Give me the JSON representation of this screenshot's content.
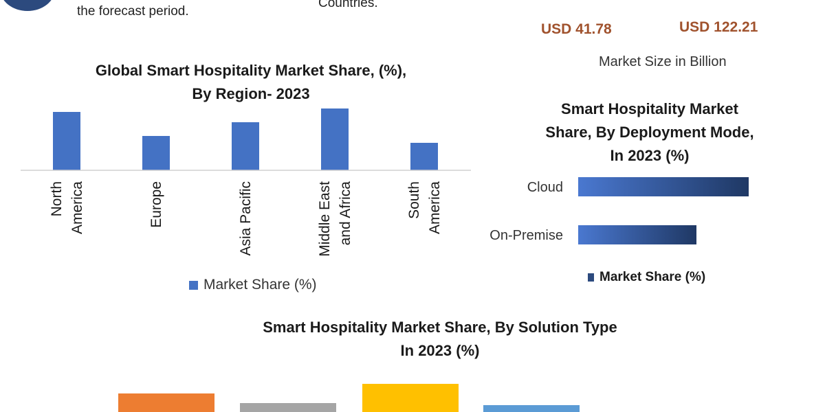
{
  "header": {
    "left_text": "the forecast period.",
    "mid_text": "Countries.",
    "usd_left": "USD 41.78",
    "usd_right": "USD 122.21",
    "size_label": "Market Size in Billion"
  },
  "colors": {
    "logo": "#2c4a7e",
    "usd": "#a0522d",
    "bar_blue": "#4472c4",
    "deploy_start": "#4a78d0",
    "deploy_end": "#1f3864",
    "solution": [
      "#ed7d31",
      "#a5a5a5",
      "#ffc000",
      "#5b9bd5"
    ]
  },
  "chart_data": [
    {
      "type": "bar",
      "title": "Global Smart Hospitality Market Share, (%),\nBy Region- 2023",
      "categories": [
        "North\nAmerica",
        "Europe",
        "Asia Pacific",
        "Middle East\nand Africa",
        "South\nAmerica"
      ],
      "series": [
        {
          "name": "Market Share (%)",
          "values": [
            34,
            20,
            28,
            36,
            16
          ]
        }
      ],
      "ylim": [
        0,
        36
      ]
    },
    {
      "type": "bar",
      "orientation": "horizontal",
      "title": "Smart Hospitality Market\nShare, By Deployment Mode,\nIn 2023 (%)",
      "categories": [
        "Cloud",
        "On-Premise"
      ],
      "series": [
        {
          "name": "Market Share (%)",
          "values": [
            62,
            43
          ]
        }
      ],
      "xlim": [
        0,
        62
      ]
    },
    {
      "type": "bar",
      "title": "Smart Hospitality Market  Share, By Solution Type\nIn 2023 (%)",
      "values": [
        27,
        13,
        41,
        10
      ],
      "ylim": [
        0,
        41
      ]
    }
  ]
}
